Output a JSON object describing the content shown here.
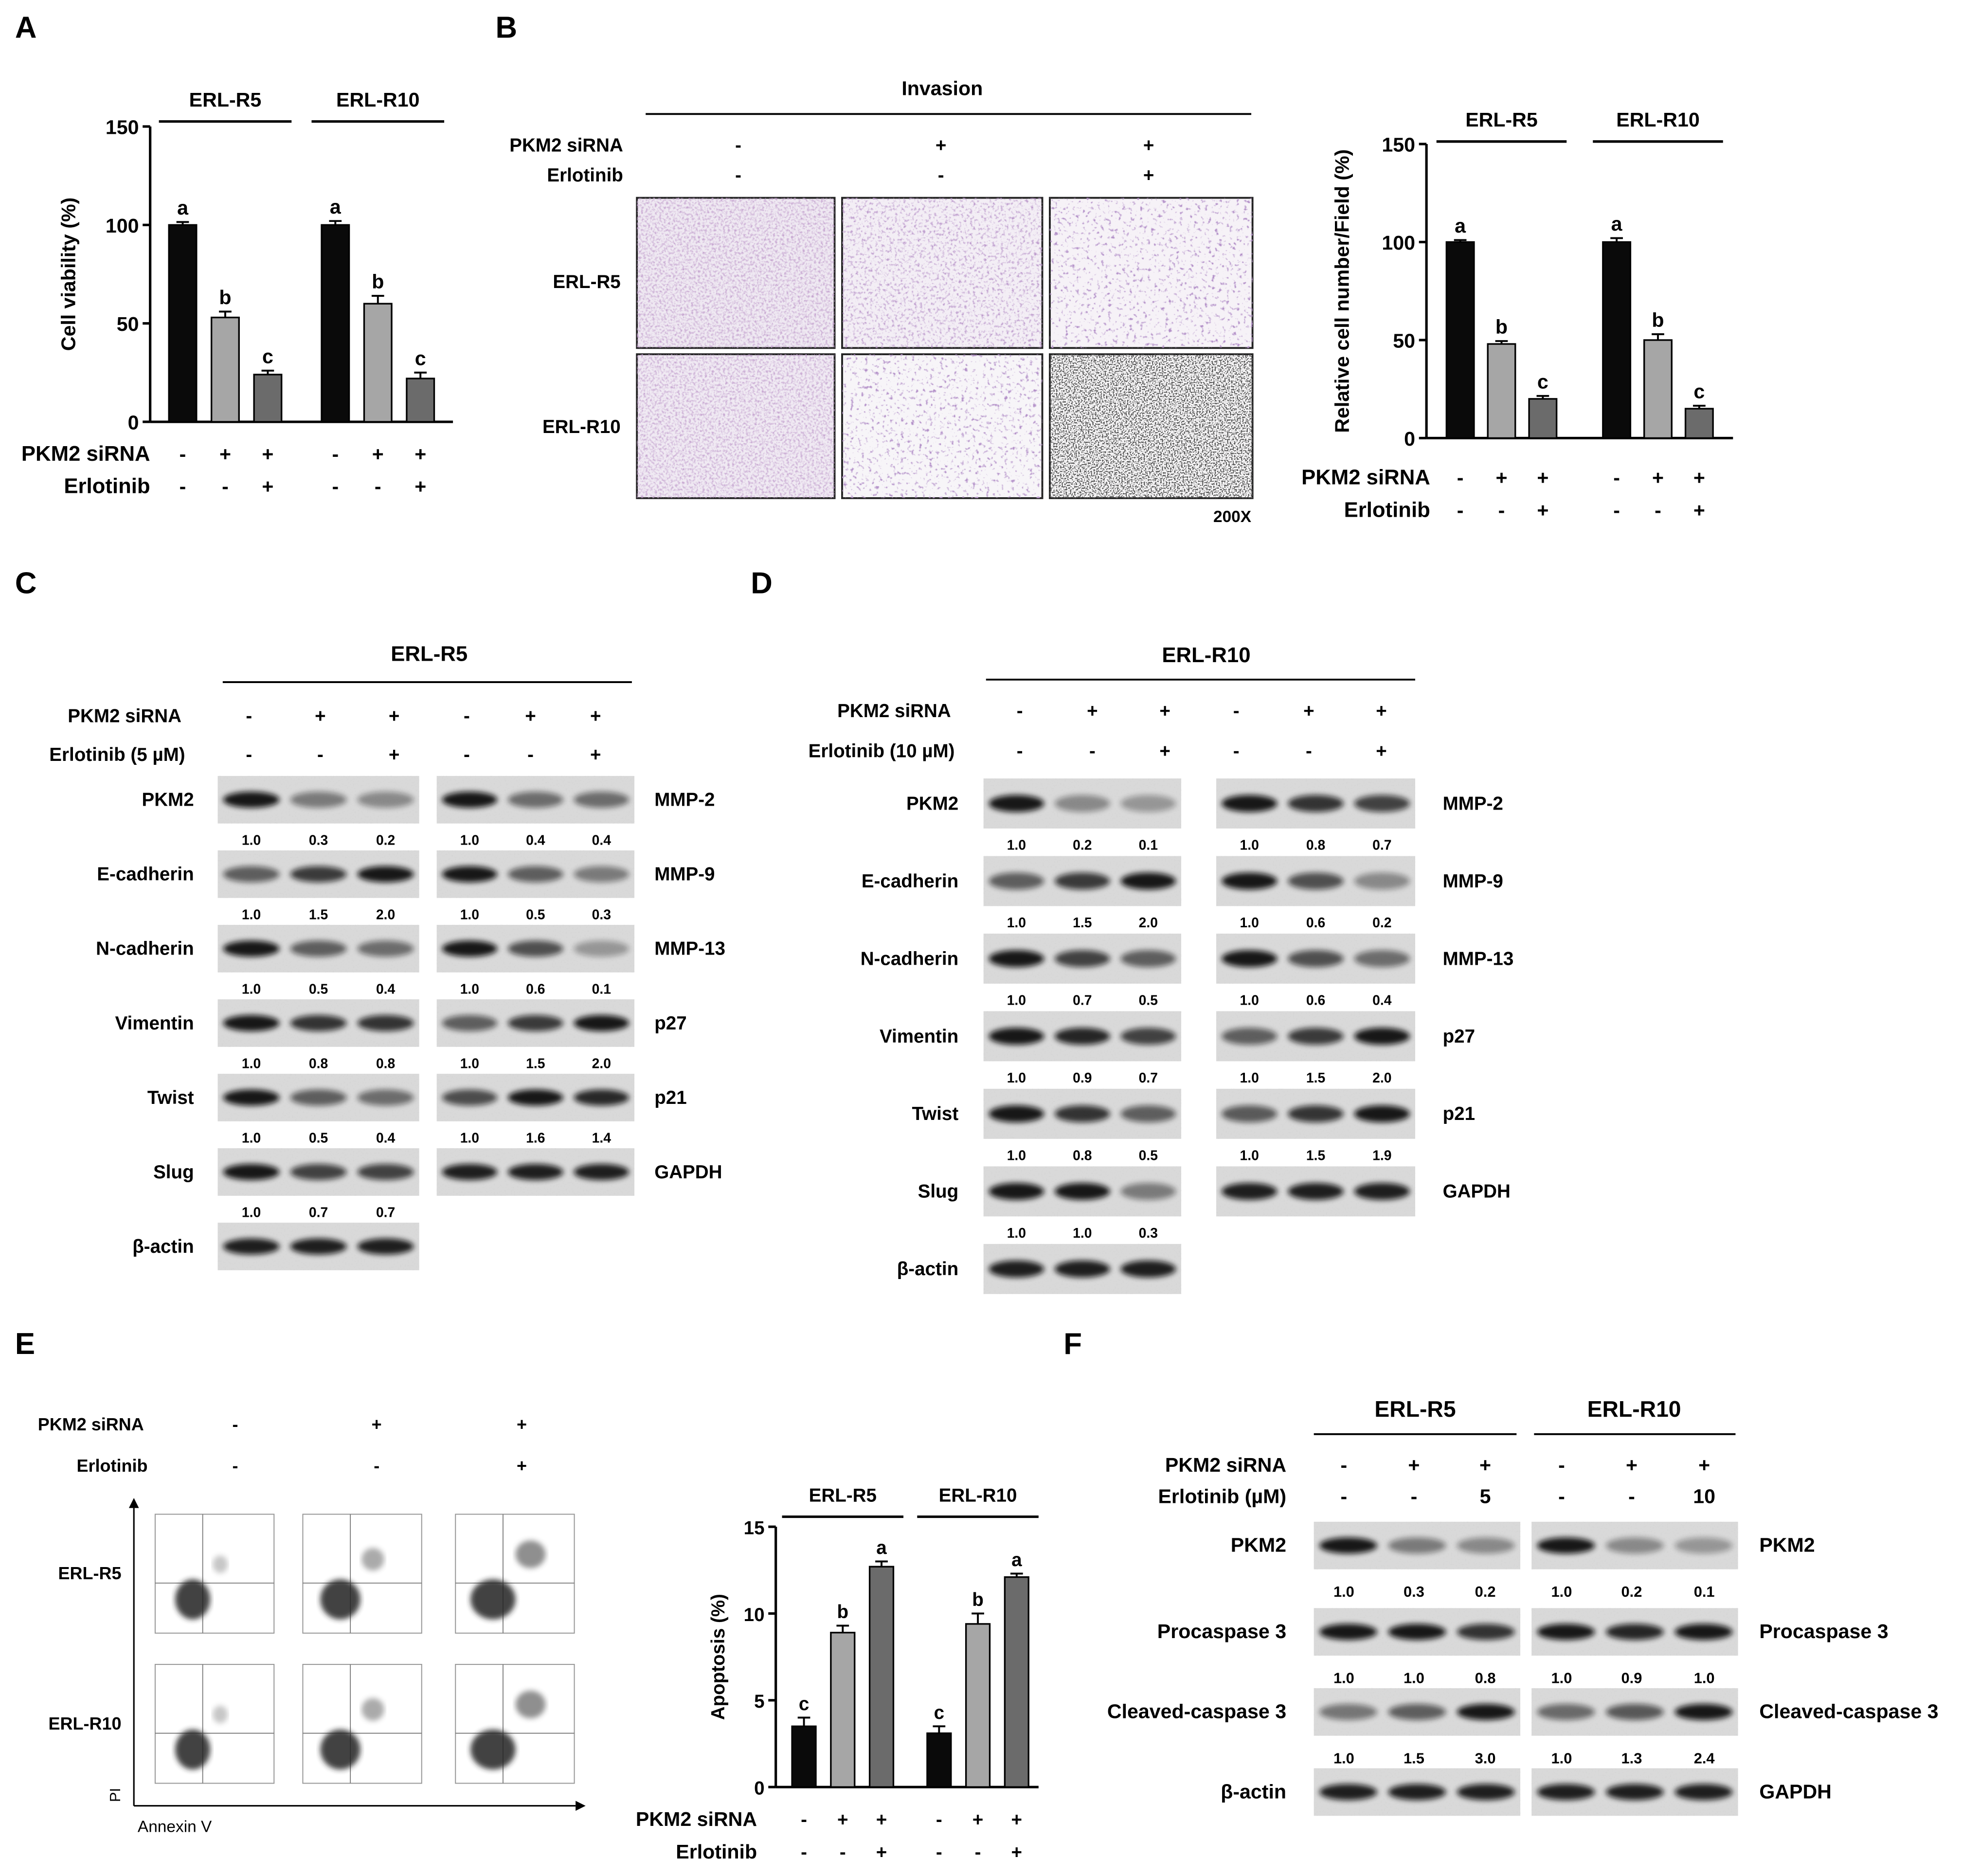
{
  "figure": {
    "panel_labels": [
      "A",
      "B",
      "C",
      "D",
      "E",
      "F"
    ],
    "treatment_labels": {
      "pkm2": "PKM2 siRNA",
      "erl": "Erlotinib",
      "erl_c": "Erlotinib (5 µM)",
      "erl_d": "Erlotinib (10 µM)",
      "erl_f": "Erlotinib (µM)"
    },
    "cell_lines": {
      "r5": "ERL-R5",
      "r10": "ERL-R10"
    },
    "signs": {
      "pkm2": [
        "-",
        "+",
        "+"
      ],
      "erl": [
        "-",
        "-",
        "+"
      ],
      "erl_f_r5": [
        "-",
        "-",
        "5"
      ],
      "erl_f_r10": [
        "-",
        "-",
        "10"
      ]
    },
    "panel_b": {
      "invasion_title": "Invasion",
      "magnification": "200X"
    },
    "panel_e": {
      "x_axis_label": "Annexin V",
      "y_axis_label": "PI"
    },
    "chart_ylabels": {
      "a": "Cell viability (%)",
      "b": "Relative cell number/Field (%)",
      "e": "Apoptosis (%)"
    },
    "significance_letters": {
      "a": [
        [
          "a",
          "b",
          "c"
        ],
        [
          "a",
          "b",
          "c"
        ]
      ],
      "b": [
        [
          "a",
          "b",
          "c"
        ],
        [
          "a",
          "b",
          "c"
        ]
      ],
      "e": [
        [
          "c",
          "b",
          "a"
        ],
        [
          "c",
          "b",
          "a"
        ]
      ]
    },
    "blots_c": {
      "left": [
        {
          "label": "PKM2",
          "values": [
            "1.0",
            "0.3",
            "0.2"
          ]
        },
        {
          "label": "E-cadherin",
          "values": [
            "1.0",
            "1.5",
            "2.0"
          ]
        },
        {
          "label": "N-cadherin",
          "values": [
            "1.0",
            "0.5",
            "0.4"
          ]
        },
        {
          "label": "Vimentin",
          "values": [
            "1.0",
            "0.8",
            "0.8"
          ]
        },
        {
          "label": "Twist",
          "values": [
            "1.0",
            "0.5",
            "0.4"
          ]
        },
        {
          "label": "Slug",
          "values": [
            "1.0",
            "0.7",
            "0.7"
          ]
        },
        {
          "label": "β-actin",
          "values": []
        }
      ],
      "right": [
        {
          "label": "MMP-2",
          "values": [
            "1.0",
            "0.4",
            "0.4"
          ]
        },
        {
          "label": "MMP-9",
          "values": [
            "1.0",
            "0.5",
            "0.3"
          ]
        },
        {
          "label": "MMP-13",
          "values": [
            "1.0",
            "0.6",
            "0.1"
          ]
        },
        {
          "label": "p27",
          "values": [
            "1.0",
            "1.5",
            "2.0"
          ]
        },
        {
          "label": "p21",
          "values": [
            "1.0",
            "1.6",
            "1.4"
          ]
        },
        {
          "label": "GAPDH",
          "values": []
        }
      ]
    },
    "blots_d": {
      "left": [
        {
          "label": "PKM2",
          "values": [
            "1.0",
            "0.2",
            "0.1"
          ]
        },
        {
          "label": "E-cadherin",
          "values": [
            "1.0",
            "1.5",
            "2.0"
          ]
        },
        {
          "label": "N-cadherin",
          "values": [
            "1.0",
            "0.7",
            "0.5"
          ]
        },
        {
          "label": "Vimentin",
          "values": [
            "1.0",
            "0.9",
            "0.7"
          ]
        },
        {
          "label": "Twist",
          "values": [
            "1.0",
            "0.8",
            "0.5"
          ]
        },
        {
          "label": "Slug",
          "values": [
            "1.0",
            "1.0",
            "0.3"
          ]
        },
        {
          "label": "β-actin",
          "values": []
        }
      ],
      "right": [
        {
          "label": "MMP-2",
          "values": [
            "1.0",
            "0.8",
            "0.7"
          ]
        },
        {
          "label": "MMP-9",
          "values": [
            "1.0",
            "0.6",
            "0.2"
          ]
        },
        {
          "label": "MMP-13",
          "values": [
            "1.0",
            "0.6",
            "0.4"
          ]
        },
        {
          "label": "p27",
          "values": [
            "1.0",
            "1.5",
            "2.0"
          ]
        },
        {
          "label": "p21",
          "values": [
            "1.0",
            "1.5",
            "1.9"
          ]
        },
        {
          "label": "GAPDH",
          "values": []
        }
      ]
    },
    "blots_f": {
      "left_labels": [
        "PKM2",
        "Procaspase 3",
        "Cleaved-caspase 3",
        "β-actin"
      ],
      "right_labels": [
        "PKM2",
        "Procaspase 3",
        "Cleaved-caspase 3",
        "GAPDH"
      ],
      "r5_values": [
        [
          "1.0",
          "0.3",
          "0.2"
        ],
        [
          "1.0",
          "1.0",
          "0.8"
        ],
        [
          "1.0",
          "1.5",
          "3.0"
        ],
        []
      ],
      "r10_values": [
        [
          "1.0",
          "0.2",
          "0.1"
        ],
        [
          "1.0",
          "0.9",
          "1.0"
        ],
        [
          "1.0",
          "1.3",
          "2.4"
        ],
        []
      ]
    },
    "colors": {
      "bar1": "#0a0a0a",
      "bar2": "#a6a6a6",
      "bar3": "#6b6b6b",
      "stain": "#8b5a9b"
    }
  },
  "chart_data": [
    {
      "type": "bar",
      "panel": "A",
      "ylabel": "Cell viability (%)",
      "ylim": [
        0,
        150
      ],
      "yticks": [
        0,
        50,
        100,
        150
      ],
      "groups": [
        {
          "name": "ERL-R5",
          "values": [
            100,
            53,
            24
          ],
          "errors": [
            1.5,
            3,
            2
          ],
          "letters": [
            "a",
            "b",
            "c"
          ]
        },
        {
          "name": "ERL-R10",
          "values": [
            100,
            60,
            22
          ],
          "errors": [
            2,
            4,
            3
          ],
          "letters": [
            "a",
            "b",
            "c"
          ]
        }
      ]
    },
    {
      "type": "bar",
      "panel": "B",
      "ylabel": "Relative cell number/Field (%)",
      "ylim": [
        0,
        150
      ],
      "yticks": [
        0,
        50,
        100,
        150
      ],
      "groups": [
        {
          "name": "ERL-R5",
          "values": [
            100,
            48,
            20
          ],
          "errors": [
            1,
            1.5,
            1.5
          ],
          "letters": [
            "a",
            "b",
            "c"
          ]
        },
        {
          "name": "ERL-R10",
          "values": [
            100,
            50,
            15
          ],
          "errors": [
            2,
            3,
            1.5
          ],
          "letters": [
            "a",
            "b",
            "c"
          ]
        }
      ]
    },
    {
      "type": "bar",
      "panel": "E",
      "ylabel": "Apoptosis (%)",
      "ylim": [
        0,
        15
      ],
      "yticks": [
        0,
        5,
        10,
        15
      ],
      "groups": [
        {
          "name": "ERL-R5",
          "values": [
            3.5,
            8.9,
            12.7
          ],
          "errors": [
            0.5,
            0.4,
            0.3
          ],
          "letters": [
            "c",
            "b",
            "a"
          ]
        },
        {
          "name": "ERL-R10",
          "values": [
            3.1,
            9.4,
            12.1
          ],
          "errors": [
            0.4,
            0.6,
            0.2
          ],
          "letters": [
            "c",
            "b",
            "a"
          ]
        }
      ]
    }
  ]
}
